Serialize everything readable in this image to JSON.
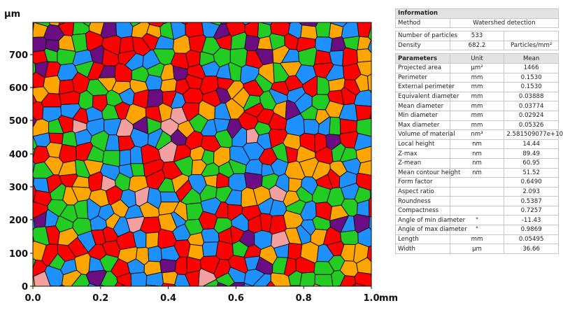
{
  "map": {
    "y_unit": "µm",
    "x_unit": "mm",
    "y_ticks": [
      "0",
      "100",
      "200",
      "300",
      "400",
      "500",
      "600",
      "700"
    ],
    "x_ticks": [
      "0.0",
      "0.2",
      "0.4",
      "0.6",
      "0.8",
      "1.0"
    ],
    "colors": [
      "#ff0000",
      "#1e90ff",
      "#22cc22",
      "#ffa500",
      "#6a0d83",
      "#f4a0a0"
    ]
  },
  "info": {
    "header": "Information",
    "method_label": "Method",
    "method_value": "Watershed detection",
    "particles_label": "Number of particles",
    "particles_value": "533",
    "density_label": "Density",
    "density_value": "682.2",
    "density_unit": "Particles/mm²"
  },
  "params": {
    "header": "Parameters",
    "unit_header": "Unit",
    "mean_header": "Mean",
    "rows": [
      {
        "name": "Projected area",
        "unit": "µm²",
        "mean": "1466"
      },
      {
        "name": "Perimeter",
        "unit": "mm",
        "mean": "0.1530"
      },
      {
        "name": "External perimeter",
        "unit": "mm",
        "mean": "0.1530"
      },
      {
        "name": "Equivalent diameter",
        "unit": "mm",
        "mean": "0.03888"
      },
      {
        "name": "Mean diameter",
        "unit": "mm",
        "mean": "0.03774"
      },
      {
        "name": "Min diameter",
        "unit": "mm",
        "mean": "0.02924"
      },
      {
        "name": "Max diameter",
        "unit": "mm",
        "mean": "0.05326"
      },
      {
        "name": "Volume of material",
        "unit": "nm³",
        "mean": "2.581509077e+10"
      },
      {
        "name": "Local height",
        "unit": "nm",
        "mean": "14.44"
      },
      {
        "name": "Z-max",
        "unit": "nm",
        "mean": "89.49"
      },
      {
        "name": "Z-mean",
        "unit": "nm",
        "mean": "60.95"
      },
      {
        "name": "Mean contour height",
        "unit": "nm",
        "mean": "51.52"
      },
      {
        "name": "Form factor",
        "unit": "",
        "mean": "0.6490"
      },
      {
        "name": "Aspect ratio",
        "unit": "",
        "mean": "2.093"
      },
      {
        "name": "Roundness",
        "unit": "",
        "mean": "0.5387"
      },
      {
        "name": "Compactness",
        "unit": "",
        "mean": "0.7257"
      },
      {
        "name": "Angle of min diameter",
        "unit": "°",
        "mean": "-11.43"
      },
      {
        "name": "Angle of max diameter",
        "unit": "°",
        "mean": "0.9869"
      },
      {
        "name": "Length",
        "unit": "mm",
        "mean": "0.05495"
      },
      {
        "name": "Width",
        "unit": "µm",
        "mean": "36.66"
      }
    ]
  }
}
